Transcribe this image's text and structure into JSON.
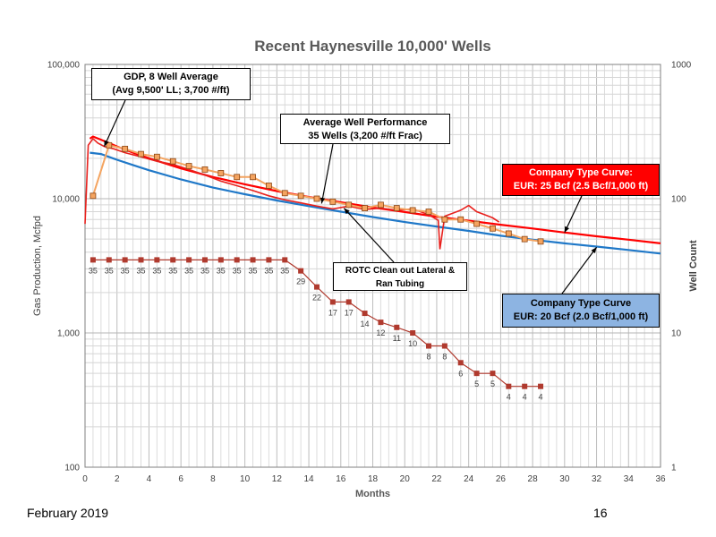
{
  "chart_data": {
    "type": "line",
    "title": "Recent Haynesville 10,000' Wells",
    "xlabel": "Months",
    "ylabel": "Gas Production, Mcfpd",
    "y2label": "Well Count",
    "xlim": [
      0,
      36
    ],
    "xticks": [
      "0",
      "2",
      "4",
      "6",
      "8",
      "10",
      "12",
      "14",
      "16",
      "18",
      "20",
      "22",
      "24",
      "26",
      "28",
      "30",
      "32",
      "34",
      "36"
    ],
    "ylim": [
      100,
      100000
    ],
    "yscale": "log",
    "yticks": [
      "100",
      "1,000",
      "10,000",
      "100,000"
    ],
    "y2lim": [
      1,
      1000
    ],
    "y2scale": "log",
    "y2ticks": [
      "1",
      "10",
      "100",
      "1000"
    ],
    "grid": true,
    "colors": {
      "daily_red": "#e8201c",
      "type_curve_red": "#ff0000",
      "type_curve_blue": "#1f78c8",
      "average_orange": "#f4a460",
      "marker_fill": "#f4a460",
      "marker_edge": "#8b4513",
      "well_count": "#b03a2e",
      "grid": "#c8c8c8"
    },
    "series": [
      {
        "name": "Company Type Curve: EUR: 25 Bcf (2.5 Bcf/1,000 ft)",
        "axis": "left",
        "x": [
          0.3,
          0.5,
          1,
          2,
          3,
          4,
          6,
          8,
          10,
          12,
          14,
          16,
          18,
          20,
          22,
          24,
          26,
          28,
          30,
          32,
          34,
          36
        ],
        "values": [
          28000,
          29000,
          27500,
          24500,
          22000,
          20000,
          16800,
          14500,
          12800,
          11400,
          10300,
          9400,
          8600,
          7950,
          7350,
          6850,
          6400,
          6000,
          5600,
          5250,
          4950,
          4650
        ]
      },
      {
        "name": "Company Type Curve EUR: 20 Bcf (2.0 Bcf/1,000 ft)",
        "axis": "left",
        "x": [
          0.3,
          1,
          2,
          3,
          4,
          6,
          8,
          10,
          12,
          14,
          16,
          18,
          20,
          22,
          24,
          26,
          28,
          30,
          32,
          34,
          36
        ],
        "values": [
          22000,
          21500,
          19500,
          17800,
          16300,
          13900,
          12100,
          10800,
          9700,
          8800,
          8000,
          7300,
          6700,
          6200,
          5750,
          5300,
          4950,
          4650,
          4400,
          4150,
          3900
        ]
      },
      {
        "name": "Average Well Performance 35 Wells (3,200 #/ft Frac)",
        "axis": "left",
        "x": [
          0.5,
          1.5,
          2.5,
          3.5,
          4.5,
          5.5,
          6.5,
          7.5,
          8.5,
          9.5,
          10.5,
          11.5,
          12.5,
          13.5,
          14.5,
          15.5,
          16.5,
          17.5,
          18.5,
          19.5,
          20.5,
          21.5,
          22.5,
          23.5,
          24.5,
          25.5,
          26.5,
          27.5,
          28.5
        ],
        "values": [
          10500,
          25000,
          23500,
          21500,
          20500,
          19000,
          17500,
          16500,
          15500,
          14500,
          14500,
          12500,
          11000,
          10500,
          10000,
          9500,
          9000,
          8500,
          9000,
          8500,
          8200,
          8000,
          7000,
          7000,
          6500,
          6000,
          5500,
          5000,
          4800
        ]
      },
      {
        "name": "GDP, 8 Well Average (Avg 9,500' LL; 3,700 #/ft)",
        "axis": "left",
        "x": [
          0,
          0.2,
          0.5,
          0.8,
          1.2,
          1.8,
          2.5,
          3.5,
          4.5,
          5.5,
          6.5,
          7.5,
          8.5,
          9.5,
          10.5,
          11.5,
          12.5,
          13.5,
          14.5,
          15.5,
          16.5,
          17.5,
          18.5,
          19.5,
          20.5,
          21.5,
          22.1,
          22.2,
          22.5,
          23.5,
          24,
          24.5,
          25,
          25.5,
          25.9
        ],
        "values": [
          6500,
          25000,
          28000,
          26000,
          24500,
          23500,
          22000,
          20500,
          19000,
          18000,
          16500,
          15000,
          13500,
          12500,
          11500,
          10500,
          9800,
          9300,
          8800,
          8400,
          8800,
          8300,
          8500,
          8200,
          8400,
          7600,
          6900,
          4200,
          7400,
          8200,
          8900,
          8000,
          7600,
          7200,
          6700
        ]
      },
      {
        "name": "Well Count",
        "axis": "right",
        "x": [
          0.5,
          1.5,
          2.5,
          3.5,
          4.5,
          5.5,
          6.5,
          7.5,
          8.5,
          9.5,
          10.5,
          11.5,
          12.5,
          13.5,
          14.5,
          15.5,
          16.5,
          17.5,
          18.5,
          19.5,
          20.5,
          21.5,
          22.5,
          23.5,
          24.5,
          25.5,
          26.5,
          27.5,
          28.5
        ],
        "values": [
          35,
          35,
          35,
          35,
          35,
          35,
          35,
          35,
          35,
          35,
          35,
          35,
          35,
          29,
          22,
          17,
          17,
          14,
          12,
          11,
          10,
          8,
          8,
          6,
          5,
          5,
          4,
          4,
          4
        ],
        "labels": [
          "35",
          "35",
          "35",
          "35",
          "35",
          "35",
          "35",
          "35",
          "35",
          "35",
          "35",
          "35",
          "35",
          "29",
          "22",
          "17",
          "17",
          "14",
          "12",
          "11",
          "10",
          "8",
          "8",
          "6",
          "5",
          "5",
          "4",
          "4",
          "4"
        ]
      }
    ]
  },
  "annotations": {
    "gdp": [
      "GDP, 8 Well Average",
      "(Avg 9,500' LL; 3,700 #/ft)"
    ],
    "average": [
      "Average Well Performance",
      "35 Wells (3,200 #/ft Frac)"
    ],
    "rotc": [
      "ROTC Clean out Lateral &",
      "Ran Tubing"
    ],
    "type25": [
      "Company Type Curve:",
      "EUR: 25 Bcf (2.5 Bcf/1,000 ft)"
    ],
    "type20": [
      "Company Type Curve",
      "EUR: 20 Bcf (2.0 Bcf/1,000 ft)"
    ]
  },
  "footer": {
    "date": "February 2019",
    "page": "16"
  }
}
